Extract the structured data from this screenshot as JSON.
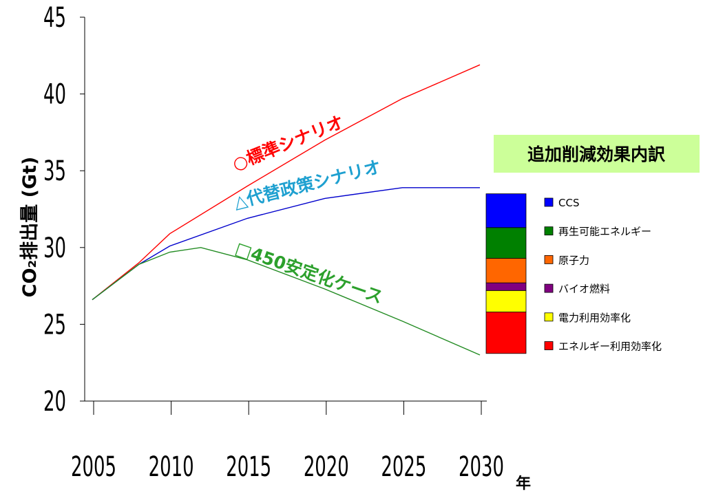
{
  "chart_data": {
    "type": "line",
    "xlabel": "年",
    "ylabel": "CO₂排出量 (Gt)",
    "xlim": [
      2005,
      2030
    ],
    "ylim": [
      20,
      45
    ],
    "x_ticks": [
      2005,
      2010,
      2015,
      2020,
      2025,
      2030
    ],
    "y_ticks": [
      20,
      25,
      30,
      35,
      40,
      45
    ],
    "grid": false,
    "series": [
      {
        "name": "○標準シナリオ",
        "color": "#ff0000",
        "x": [
          2005,
          2008,
          2010,
          2015,
          2020,
          2025,
          2030
        ],
        "y": [
          26.6,
          29.0,
          30.9,
          34.0,
          37.0,
          39.7,
          41.9
        ]
      },
      {
        "name": "△代替政策シナリオ",
        "color": "#0000cc",
        "x": [
          2005,
          2008,
          2010,
          2015,
          2020,
          2025,
          2030
        ],
        "y": [
          26.6,
          28.9,
          30.1,
          31.9,
          33.2,
          33.9,
          33.9
        ]
      },
      {
        "name": "□450安定化ケース",
        "color": "#228b22",
        "x": [
          2005,
          2008,
          2010,
          2012,
          2015,
          2020,
          2025,
          2030
        ],
        "y": [
          26.6,
          28.9,
          29.7,
          30.0,
          29.2,
          27.3,
          25.2,
          23.0
        ]
      }
    ],
    "series_label_colors": [
      "#ff0000",
      "#1ea0d0",
      "#2ca02c"
    ],
    "breakdown": {
      "title": "追加削減効果内訳",
      "title_bg": "#ccff99",
      "stack": [
        {
          "name": "エネルギー利用効率化",
          "color": "#ff0000",
          "from": 23.1,
          "to": 25.8
        },
        {
          "name": "電力利用効率化",
          "color": "#ffff00",
          "from": 25.8,
          "to": 27.2
        },
        {
          "name": "バイオ燃料",
          "color": "#800080",
          "from": 27.2,
          "to": 27.7
        },
        {
          "name": "原子力",
          "color": "#ff6600",
          "from": 27.7,
          "to": 29.3
        },
        {
          "name": "再生可能エネルギー",
          "color": "#008000",
          "from": 29.3,
          "to": 31.3
        },
        {
          "name": "CCS",
          "color": "#0000ff",
          "from": 31.3,
          "to": 33.5
        }
      ],
      "legend": [
        {
          "name": "CCS",
          "color": "#0000ff"
        },
        {
          "name": "再生可能エネルギー",
          "color": "#008000"
        },
        {
          "name": "原子力",
          "color": "#ff6600"
        },
        {
          "name": "バイオ燃料",
          "color": "#800080"
        },
        {
          "name": "電力利用効率化",
          "color": "#ffff00"
        },
        {
          "name": "エネルギー利用効率化",
          "color": "#ff0000"
        }
      ]
    }
  }
}
